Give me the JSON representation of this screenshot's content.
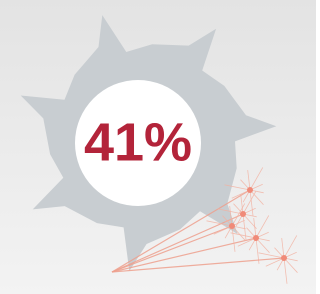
{
  "stat": {
    "label": "41%"
  }
}
